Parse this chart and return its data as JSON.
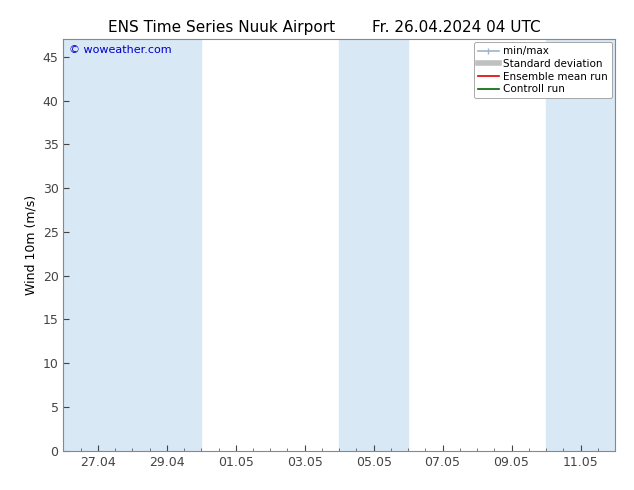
{
  "title_left": "ENS Time Series Nuuk Airport",
  "title_right": "Fr. 26.04.2024 04 UTC",
  "ylabel": "Wind 10m (m/s)",
  "ylim": [
    0,
    47
  ],
  "yticks": [
    0,
    5,
    10,
    15,
    20,
    25,
    30,
    35,
    40,
    45
  ],
  "xtick_labels": [
    "27.04",
    "29.04",
    "01.05",
    "03.05",
    "05.05",
    "07.05",
    "09.05",
    "11.05"
  ],
  "xtick_positions": [
    2,
    6,
    10,
    14,
    18,
    22,
    26,
    30
  ],
  "xlim": [
    0,
    32
  ],
  "watermark": "© woweather.com",
  "watermark_color": "#0000cc",
  "bg_color": "#ffffff",
  "plot_bg_color": "#ffffff",
  "band_color": "#d8e8f4",
  "band_x_ranges": [
    [
      0.0,
      4.0
    ],
    [
      4.0,
      8.0
    ],
    [
      16.0,
      20.0
    ],
    [
      28.0,
      32.0
    ]
  ],
  "legend_entries": [
    {
      "label": "min/max",
      "color": "#a0b4c8",
      "lw": 1.2,
      "linestyle": "-"
    },
    {
      "label": "Standard deviation",
      "color": "#c0c0c0",
      "lw": 4,
      "linestyle": "-"
    },
    {
      "label": "Ensemble mean run",
      "color": "#dd0000",
      "lw": 1.2,
      "linestyle": "-"
    },
    {
      "label": "Controll run",
      "color": "#006600",
      "lw": 1.2,
      "linestyle": "-"
    }
  ],
  "spine_color": "#888888",
  "tick_color": "#444444",
  "label_font_size": 9,
  "tick_font_size": 9,
  "title_font_size": 11,
  "ylabel_font_size": 9
}
